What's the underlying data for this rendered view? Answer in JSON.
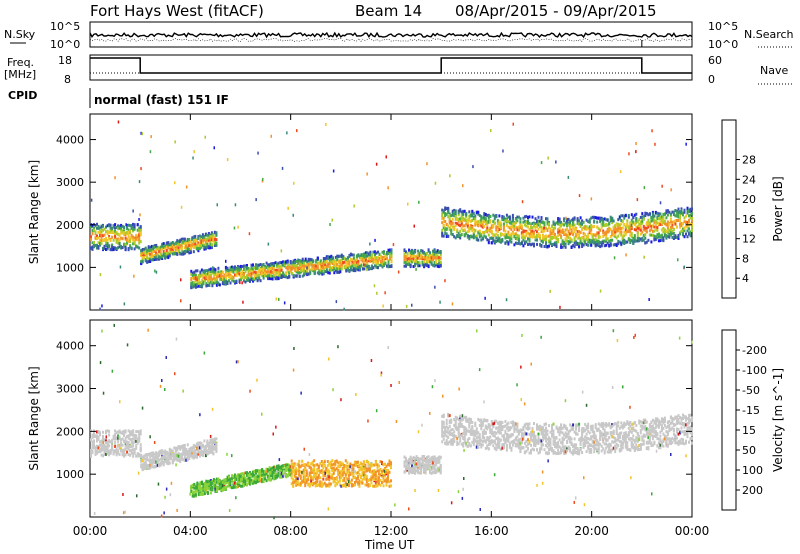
{
  "header": {
    "station": "Fort Hays West (fitACF)",
    "beam": "Beam 14",
    "dates": "08/Apr/2015 - 09/Apr/2015"
  },
  "labels": {
    "nsky": "N.Sky",
    "nsearch": "N.Search",
    "freq": "Freq.",
    "freq_unit": "[MHz]",
    "nave": "Nave",
    "cpid": "CPID",
    "cpid_value": "normal (fast) 151 IF",
    "xlabel": "Time UT"
  },
  "noise_panel": {
    "ytick_top": "10^5",
    "ytick_bottom": "10^0",
    "rtick_top": "10^5",
    "rtick_bottom": "10^0"
  },
  "freq_panel": {
    "left_ticks": [
      "18",
      "8"
    ],
    "right_ticks": [
      "60",
      "0"
    ],
    "steps_hours": [
      0,
      2,
      14,
      22,
      24
    ],
    "levels": [
      "high",
      "low",
      "high",
      "low"
    ]
  },
  "x_axis": {
    "ticks": [
      "00:00",
      "04:00",
      "08:00",
      "12:00",
      "16:00",
      "20:00",
      "00:00"
    ],
    "hours": [
      0,
      4,
      8,
      12,
      16,
      20,
      24
    ],
    "range": [
      0,
      24
    ]
  },
  "chart_data": [
    {
      "type": "heatmap",
      "title": "",
      "xlabel": "Time UT",
      "ylabel": "Slant Range [km]",
      "xlim": [
        0,
        24
      ],
      "ylim": [
        0,
        4600
      ],
      "yticks": [
        "1000",
        "2000",
        "3000",
        "4000"
      ],
      "ytick_values": [
        1000,
        2000,
        3000,
        4000
      ],
      "colorbar": {
        "label": "Power [dB]",
        "ticks": [
          "4",
          "8",
          "12",
          "16",
          "20",
          "24",
          "28"
        ],
        "colors": [
          "#1a1ae6",
          "#3a4fb0",
          "#3a8a7a",
          "#45a84a",
          "#a8cc2a",
          "#f2c62a",
          "#f2932a",
          "#ee4a1e",
          "#d81818"
        ]
      },
      "bands": [
        {
          "t0": 0,
          "t1": 2,
          "center": 1750,
          "half_width": 300,
          "level": 4
        },
        {
          "t0": 2,
          "t1": 5,
          "center": 1300,
          "half_width": 180,
          "level": 4
        },
        {
          "t0": 4,
          "t1": 12,
          "center": 900,
          "half_width": 200,
          "level": 4
        },
        {
          "t0": 12.5,
          "t1": 14,
          "center": 1250,
          "half_width": 200,
          "level": 6
        },
        {
          "t0": 14,
          "t1": 24,
          "center": 1950,
          "half_width": 350,
          "level": 4
        }
      ]
    },
    {
      "type": "heatmap",
      "title": "",
      "xlabel": "Time UT",
      "ylabel": "Slant Range [km]",
      "xlim": [
        0,
        24
      ],
      "ylim": [
        0,
        4600
      ],
      "yticks": [
        "1000",
        "2000",
        "3000",
        "4000"
      ],
      "ytick_values": [
        1000,
        2000,
        3000,
        4000
      ],
      "colorbar": {
        "label": "Velocity [m s^-1]",
        "ticks": [
          "200",
          "100",
          "50",
          "15",
          "-15",
          "-50",
          "-100",
          "-200"
        ],
        "colors": [
          "#2a2ab8",
          "#2a6a2a",
          "#3aa83a",
          "#8cd43a",
          "#c8c8c8",
          "#f2c62a",
          "#f2932a",
          "#ee4a1e",
          "#d81818"
        ]
      },
      "bands": [
        {
          "t0": 0,
          "t1": 2,
          "center": 1750,
          "half_width": 300,
          "color": "gray"
        },
        {
          "t0": 2,
          "t1": 5,
          "center": 1300,
          "half_width": 180,
          "color": "gray"
        },
        {
          "t0": 4,
          "t1": 8,
          "center": 800,
          "half_width": 150,
          "color": "green"
        },
        {
          "t0": 8,
          "t1": 12,
          "center": 1050,
          "half_width": 300,
          "color": "orange"
        },
        {
          "t0": 12.5,
          "t1": 14,
          "center": 1250,
          "half_width": 200,
          "color": "gray"
        },
        {
          "t0": 14,
          "t1": 24,
          "center": 1950,
          "half_width": 350,
          "color": "gray"
        }
      ]
    }
  ]
}
